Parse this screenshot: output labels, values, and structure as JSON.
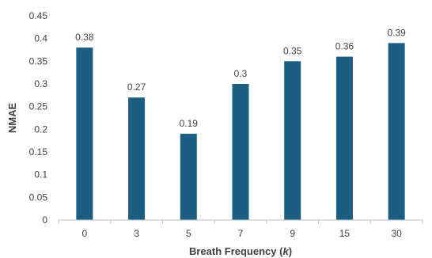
{
  "chart_data": {
    "type": "bar",
    "categories": [
      "0",
      "3",
      "5",
      "7",
      "9",
      "15",
      "30"
    ],
    "values": [
      0.38,
      0.27,
      0.19,
      0.3,
      0.35,
      0.36,
      0.39
    ],
    "data_labels": [
      "0.38",
      "0.27",
      "0.19",
      "0.3",
      "0.35",
      "0.36",
      "0.39"
    ],
    "title": "",
    "xlabel_main": "Breath Frequency (",
    "xlabel_var": "k",
    "xlabel_end": ")",
    "ylabel": "NMAE",
    "ylim": [
      0,
      0.45
    ],
    "yticks": [
      0,
      0.05,
      0.1,
      0.15,
      0.2,
      0.25,
      0.3,
      0.35,
      0.4,
      0.45
    ],
    "ytick_labels": [
      "0",
      "0.05",
      "0.1",
      "0.15",
      "0.2",
      "0.25",
      "0.3",
      "0.35",
      "0.4",
      "0.45"
    ],
    "grid": false,
    "legend": "none",
    "bar_color": "#1b5e82"
  }
}
